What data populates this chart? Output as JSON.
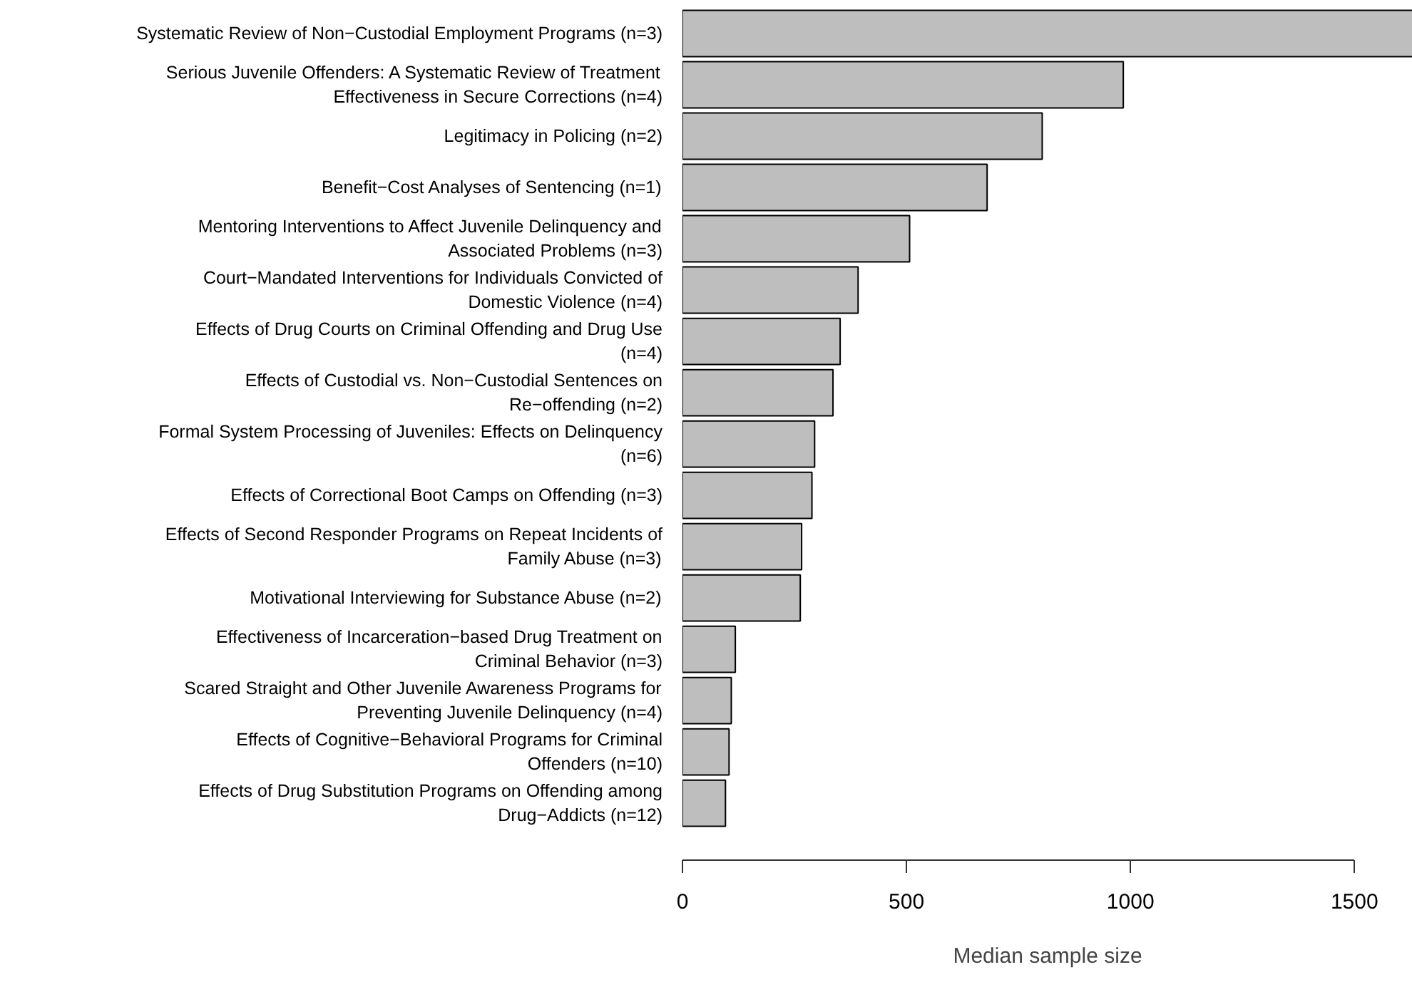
{
  "chart_data": {
    "type": "bar",
    "orientation": "horizontal",
    "xlabel": "Median sample size",
    "categories": [
      "Systematic Review of Non−Custodial Employment Programs (n=3)",
      "Serious Juvenile Offenders: A Systematic Review of Treatment\nEffectiveness in Secure Corrections (n=4)",
      "Legitimacy in Policing (n=2)",
      "Benefit−Cost Analyses of Sentencing (n=1)",
      "Mentoring Interventions to Affect Juvenile Delinquency and\nAssociated Problems (n=3)",
      "Court−Mandated Interventions for Individuals Convicted of\nDomestic Violence (n=4)",
      "Effects of Drug Courts on Criminal Offending and Drug Use\n(n=4)",
      "Effects of Custodial vs. Non−Custodial Sentences on\nRe−offending (n=2)",
      "Formal System Processing of Juveniles: Effects on Delinquency\n(n=6)",
      "Effects of Correctional Boot Camps on Offending (n=3)",
      "Effects of Second Responder Programs on Repeat Incidents of\nFamily Abuse (n=3)",
      "Motivational Interviewing for Substance Abuse (n=2)",
      "Effectiveness of Incarceration−based Drug Treatment on\nCriminal Behavior (n=3)",
      "Scared Straight and Other Juvenile Awareness Programs for\nPreventing Juvenile Delinquency (n=4)",
      "Effects of Cognitive−Behavioral Programs for Criminal\nOffenders (n=10)",
      "Effects of Drug Substitution Programs on Offending among\nDrug−Addicts (n=12)"
    ],
    "values": [
      1630,
      984,
      803,
      680,
      507,
      392,
      352,
      336,
      295,
      289,
      266,
      263,
      118,
      109,
      104,
      96
    ],
    "color": "#bebebe",
    "xlim": [
      0,
      1630
    ],
    "xticks": [
      0,
      500,
      1000,
      1500
    ],
    "grid": false
  }
}
